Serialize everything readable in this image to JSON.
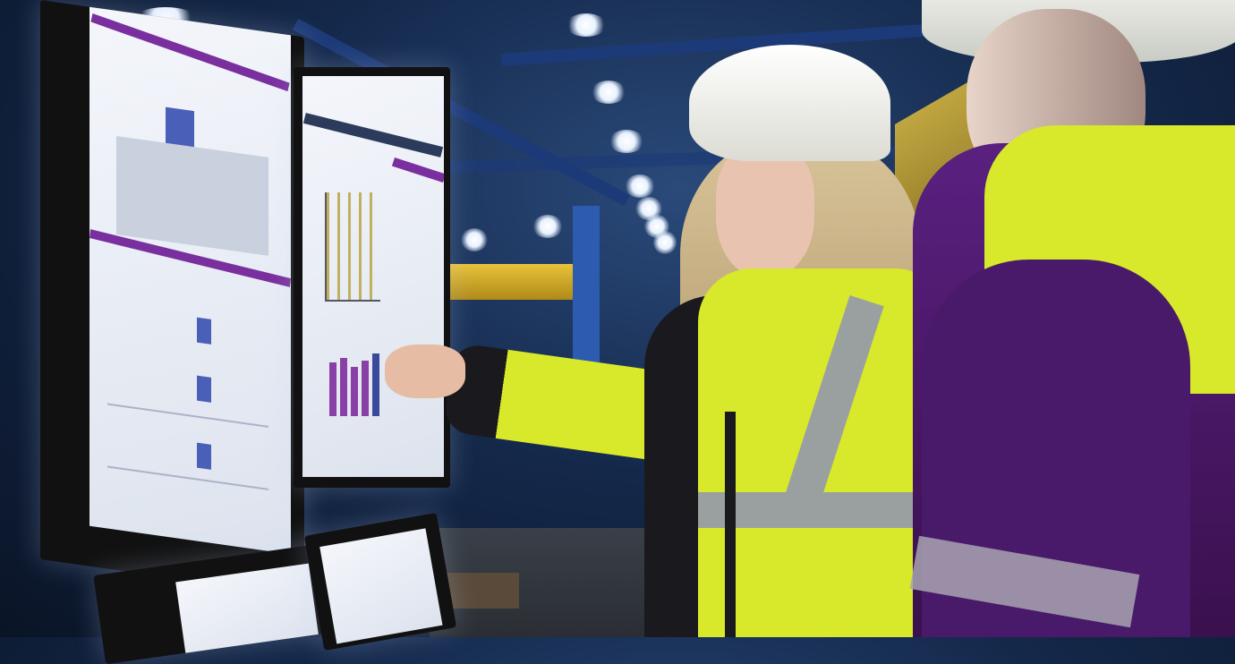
{
  "colors": {
    "background": "#14284a",
    "ceiling_beam": "#1d3a78",
    "screen": "#f4f6fb",
    "screen_accent": "#7a2f9e",
    "hardhat": "#f2f2ee",
    "safety_vest": "#d8e82a",
    "reflective_stripe": "#9aa0a0",
    "jacket": "#1a1a1e",
    "purple_jacket": "#4a1a6a"
  }
}
